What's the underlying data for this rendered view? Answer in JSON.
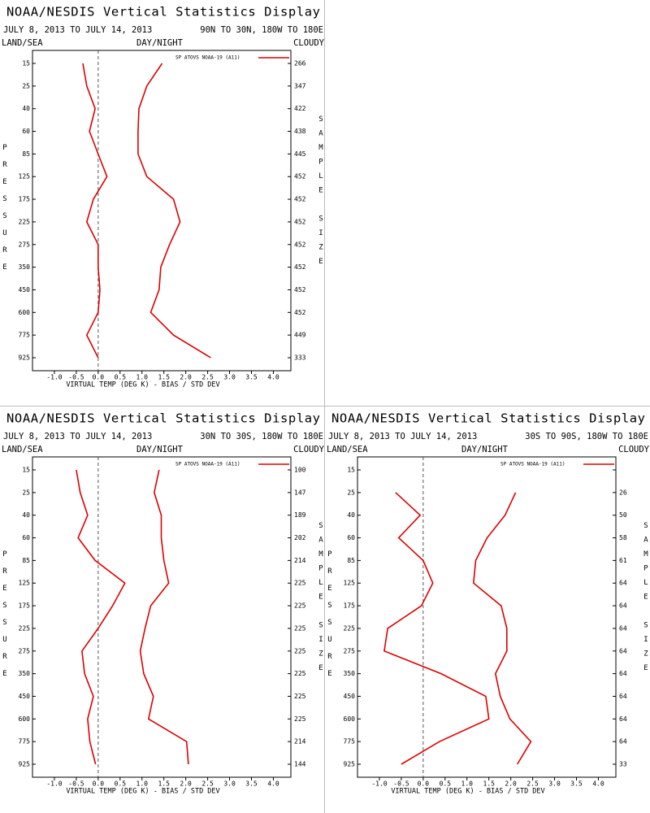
{
  "chart_data": [
    {
      "type": "profile",
      "title": "NOAA/NESDIS Vertical Statistics Display",
      "subtitle": "JULY 8, 2013 TO JULY 14, 2013",
      "region": "90N TO 30N, 180W TO 180E",
      "headers": [
        "LAND/SEA",
        "DAY/NIGHT",
        "CLOUDY"
      ],
      "ylabel": "PRESSURE",
      "y2label": "SAMPLE SIZE",
      "xlabel": "VIRTUAL TEMP (DEG K) - BIAS / STD DEV",
      "categories": [
        15,
        25,
        40,
        60,
        85,
        125,
        175,
        225,
        275,
        350,
        450,
        600,
        775,
        925
      ],
      "sample_size": [
        266,
        347,
        422,
        438,
        445,
        452,
        452,
        452,
        452,
        452,
        452,
        452,
        449,
        333
      ],
      "series": [
        {
          "name": "SP ATOVS NOAA-19 (A11)",
          "color": "#dd0000",
          "bias": [
            -0.35,
            -0.26,
            -0.07,
            -0.2,
            0.0,
            0.2,
            -0.11,
            -0.26,
            0.0,
            0.0,
            0.04,
            0.0,
            -0.26,
            0.0
          ],
          "std_dev": [
            1.46,
            1.11,
            0.93,
            0.91,
            0.91,
            1.11,
            1.72,
            1.87,
            1.63,
            1.43,
            1.39,
            1.2,
            1.72,
            2.57
          ]
        }
      ],
      "xlim": [
        -1.5,
        4.4
      ],
      "xticks": [
        {
          "value": -1,
          "label": "-1.0"
        },
        -0.5,
        {
          "value": 0,
          "label": "0.0"
        },
        0.5,
        {
          "value": 1,
          "label": "1.0"
        },
        1.5,
        {
          "value": 2,
          "label": "2.0"
        },
        2.5,
        {
          "value": 3,
          "label": "3.0"
        },
        3.5,
        {
          "value": 4,
          "label": "4.0"
        }
      ]
    },
    {
      "type": "profile",
      "title": "NOAA/NESDIS Vertical Statistics Display",
      "subtitle": "JULY 8, 2013 TO JULY 14, 2013",
      "region": "30N TO 30S, 180W TO 180E",
      "headers": [
        "LAND/SEA",
        "DAY/NIGHT",
        "CLOUDY"
      ],
      "ylabel": "PRESSURE",
      "y2label": "SAMPLE SIZE",
      "xlabel": "VIRTUAL TEMP (DEG K) - BIAS / STD DEV",
      "categories": [
        15,
        25,
        40,
        60,
        85,
        125,
        175,
        225,
        275,
        350,
        450,
        600,
        775,
        925
      ],
      "sample_size": [
        100,
        147,
        189,
        202,
        214,
        225,
        225,
        225,
        225,
        225,
        225,
        225,
        214,
        144
      ],
      "series": [
        {
          "name": "SP ATOVS NOAA-19 (A11)",
          "color": "#dd0000",
          "bias": [
            -0.5,
            -0.41,
            -0.24,
            -0.46,
            -0.07,
            0.61,
            0.33,
            0.0,
            -0.37,
            -0.31,
            -0.11,
            -0.24,
            -0.19,
            -0.06
          ],
          "std_dev": [
            1.39,
            1.28,
            1.44,
            1.44,
            1.5,
            1.61,
            1.2,
            1.07,
            0.96,
            1.04,
            1.26,
            1.15,
            2.02,
            2.06
          ]
        }
      ],
      "xlim": [
        -1.5,
        4.4
      ],
      "xticks": [
        {
          "value": -1,
          "label": "-1.0"
        },
        -0.5,
        {
          "value": 0,
          "label": "0.0"
        },
        0.5,
        {
          "value": 1,
          "label": "1.0"
        },
        1.5,
        {
          "value": 2,
          "label": "2.0"
        },
        2.5,
        {
          "value": 3,
          "label": "3.0"
        },
        3.5,
        {
          "value": 4,
          "label": "4.0"
        }
      ]
    },
    {
      "type": "profile",
      "title": "NOAA/NESDIS Vertical Statistics Display",
      "subtitle": "JULY 8, 2013 TO JULY 14, 2013",
      "region": "30S TO 90S, 180W TO 180E",
      "headers": [
        "LAND/SEA",
        "DAY/NIGHT",
        "CLOUDY"
      ],
      "ylabel": "PRESSURE",
      "y2label": "SAMPLE SIZE",
      "xlabel": "VIRTUAL TEMP (DEG K) - BIAS / STD DEV",
      "categories": [
        15,
        25,
        40,
        60,
        85,
        125,
        175,
        225,
        275,
        350,
        450,
        600,
        775,
        925
      ],
      "sample_size": [
        null,
        26,
        50,
        58,
        61,
        64,
        64,
        64,
        64,
        64,
        64,
        64,
        64,
        33
      ],
      "series": [
        {
          "name": "SP ATOVS NOAA-19 (A11)",
          "color": "#dd0000",
          "bias": [
            null,
            -0.63,
            -0.07,
            -0.56,
            0.0,
            0.22,
            -0.04,
            -0.81,
            -0.89,
            0.41,
            1.43,
            1.5,
            0.37,
            -0.5
          ],
          "std_dev": [
            null,
            2.11,
            1.87,
            1.46,
            1.2,
            1.15,
            1.78,
            1.91,
            1.91,
            1.65,
            1.76,
            1.98,
            2.46,
            2.15
          ]
        }
      ],
      "xlim": [
        -1.5,
        4.4
      ],
      "xticks": [
        {
          "value": -1,
          "label": "-1.0"
        },
        -0.5,
        {
          "value": 0,
          "label": "0.0"
        },
        0.5,
        {
          "value": 1,
          "label": "1.0"
        },
        1.5,
        {
          "value": 2,
          "label": "2.0"
        },
        2.5,
        {
          "value": 3,
          "label": "3.0"
        },
        3.5,
        {
          "value": 4,
          "label": "4.0"
        }
      ]
    }
  ]
}
